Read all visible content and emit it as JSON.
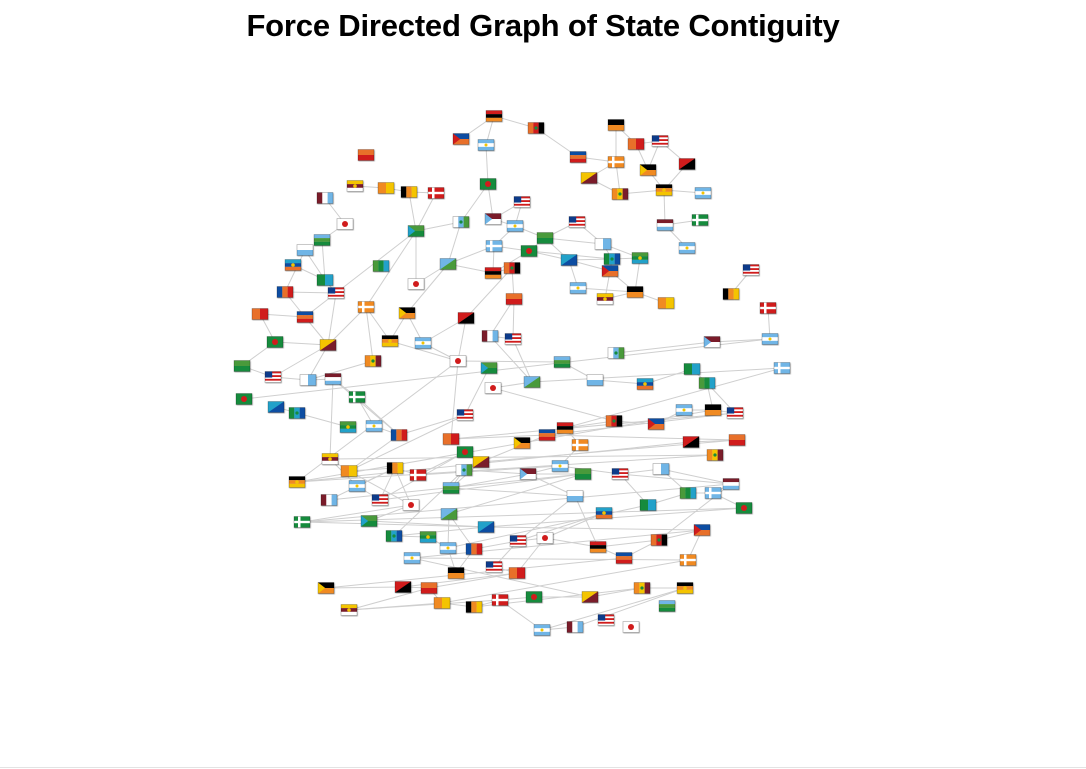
{
  "title": "Force Directed Graph of State Contiguity",
  "node_count": 166
}
